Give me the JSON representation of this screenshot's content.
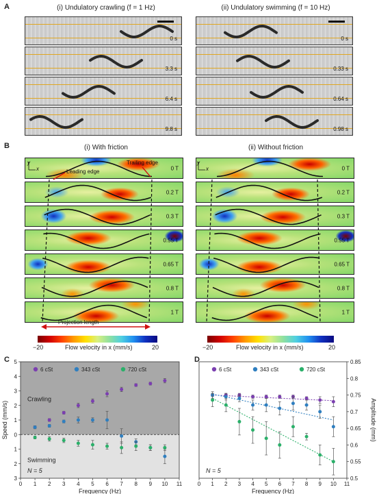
{
  "panel_A": {
    "label": "A",
    "left_title": "(i) Undulatory crawling (f = 1 Hz)",
    "right_title": "(ii) Undulatory swimming (f = 10 Hz)",
    "left_times": [
      "0 s",
      "3.3 s",
      "6.4 s",
      "9.8 s"
    ],
    "right_times": [
      "0 s",
      "0.33 s",
      "0.64 s",
      "0.98 s"
    ]
  },
  "panel_B": {
    "label": "B",
    "left_title": "(i) With friction",
    "right_title": "(ii) Without friction",
    "times": [
      "0 T",
      "0.2 T",
      "0.3 T",
      "0.55 T",
      "0.65 T",
      "0.8 T",
      "1 T"
    ],
    "axis_y": "y",
    "axis_x": "x",
    "leading_edge": "Leading edge",
    "trailing_edge": "Trailing edge",
    "projection_length": "Projection length",
    "colorbar_min": "−20",
    "colorbar_max": "20",
    "colorbar_label": "Flow velocity in x (mm/s)"
  },
  "panel_C": {
    "label": "C",
    "crawling": "Crawling",
    "swimming": "Swimming",
    "n_label": "N = 5"
  },
  "panel_D": {
    "label": "D",
    "n_label": "N = 5"
  },
  "chart_data": [
    {
      "type": "scatter",
      "panel": "C",
      "xlabel": "Frequency (Hz)",
      "ylabel": "Speed (mm/s)",
      "xlim": [
        0,
        11
      ],
      "ylim": [
        -3,
        5
      ],
      "yticks": [
        {
          "v": 5,
          "label": "5"
        },
        {
          "v": 4,
          "label": "4"
        },
        {
          "v": 3,
          "label": "3"
        },
        {
          "v": 2,
          "label": "2"
        },
        {
          "v": 1,
          "label": "1"
        },
        {
          "v": 0,
          "label": "0"
        },
        {
          "v": -1,
          "label": "1"
        },
        {
          "v": -2,
          "label": "2"
        },
        {
          "v": -3,
          "label": "3"
        }
      ],
      "xticks": [
        0,
        1,
        2,
        3,
        4,
        5,
        6,
        7,
        8,
        9,
        10,
        11
      ],
      "legend": "top",
      "series": [
        {
          "name": "6 cSt",
          "color": "#7b3fb0",
          "x": [
            1,
            2,
            3,
            4,
            5,
            6,
            7,
            8,
            9,
            10
          ],
          "y": [
            0.5,
            1.0,
            1.5,
            2.0,
            2.3,
            2.8,
            3.1,
            3.4,
            3.5,
            3.7
          ],
          "err": [
            0.1,
            0.1,
            0.1,
            0.15,
            0.15,
            0.2,
            0.15,
            0.1,
            0.1,
            0.15
          ]
        },
        {
          "name": "343 cSt",
          "color": "#2f7fc0",
          "x": [
            1,
            2,
            3,
            4,
            5,
            6,
            7,
            8,
            9,
            10
          ],
          "y": [
            0.5,
            0.6,
            0.9,
            1.0,
            1.0,
            1.0,
            -0.1,
            -0.5,
            -0.9,
            -1.5
          ],
          "err": [
            0.1,
            0.1,
            0.1,
            0.2,
            0.15,
            0.6,
            0.5,
            0.2,
            0.2,
            0.5
          ]
        },
        {
          "name": "720 cSt",
          "color": "#2bb06a",
          "x": [
            1,
            2,
            3,
            4,
            5,
            6,
            7,
            8,
            9,
            10
          ],
          "y": [
            -0.2,
            -0.3,
            -0.4,
            -0.6,
            -0.7,
            -0.8,
            -0.9,
            -0.8,
            -0.9,
            -0.9
          ],
          "err": [
            0.1,
            0.15,
            0.15,
            0.2,
            0.3,
            0.2,
            0.4,
            0.3,
            0.2,
            0.2
          ]
        }
      ]
    },
    {
      "type": "scatter",
      "panel": "D",
      "xlabel": "Frequency (Hz)",
      "ylabel": "Amplitude (mm)",
      "xlim": [
        0,
        11
      ],
      "ylim": [
        0.5,
        0.85
      ],
      "yticks": [
        0.5,
        0.55,
        0.6,
        0.65,
        0.7,
        0.75,
        0.8,
        0.85
      ],
      "xticks": [
        0,
        1,
        2,
        3,
        4,
        5,
        6,
        7,
        8,
        9,
        10,
        11
      ],
      "legend": "top",
      "series": [
        {
          "name": "6 cSt",
          "color": "#7b3fb0",
          "x": [
            1,
            2,
            3,
            4,
            5,
            6,
            7,
            8,
            9,
            10
          ],
          "y": [
            0.75,
            0.75,
            0.75,
            0.745,
            0.745,
            0.745,
            0.745,
            0.74,
            0.735,
            0.73
          ],
          "err": [
            0.005,
            0.005,
            0.005,
            0.005,
            0.005,
            0.005,
            0.005,
            0.005,
            0.01,
            0.015
          ]
        },
        {
          "name": "343 cSt",
          "color": "#2f7fc0",
          "x": [
            1,
            2,
            3,
            4,
            5,
            6,
            7,
            8,
            9,
            10
          ],
          "y": [
            0.75,
            0.745,
            0.74,
            0.72,
            0.72,
            0.71,
            0.725,
            0.72,
            0.7,
            0.655
          ],
          "err": [
            0.01,
            0.01,
            0.01,
            0.015,
            0.02,
            0.02,
            0.02,
            0.015,
            0.02,
            0.03
          ]
        },
        {
          "name": "720 cSt",
          "color": "#2bb06a",
          "x": [
            1,
            2,
            3,
            4,
            5,
            6,
            7,
            8,
            9,
            10
          ],
          "y": [
            0.735,
            0.72,
            0.67,
            0.645,
            0.62,
            0.6,
            0.655,
            0.625,
            0.57,
            0.55
          ],
          "err": [
            0.02,
            0.02,
            0.04,
            0.04,
            0.05,
            0.04,
            0.03,
            0.01,
            0.03,
            0.04
          ]
        }
      ],
      "trendlines": [
        {
          "series": "6 cSt",
          "y_at_x1": 0.75,
          "y_at_x10": 0.733
        },
        {
          "series": "343 cSt",
          "y_at_x1": 0.753,
          "y_at_x10": 0.675
        },
        {
          "series": "720 cSt",
          "y_at_x1": 0.74,
          "y_at_x10": 0.55
        }
      ]
    }
  ]
}
